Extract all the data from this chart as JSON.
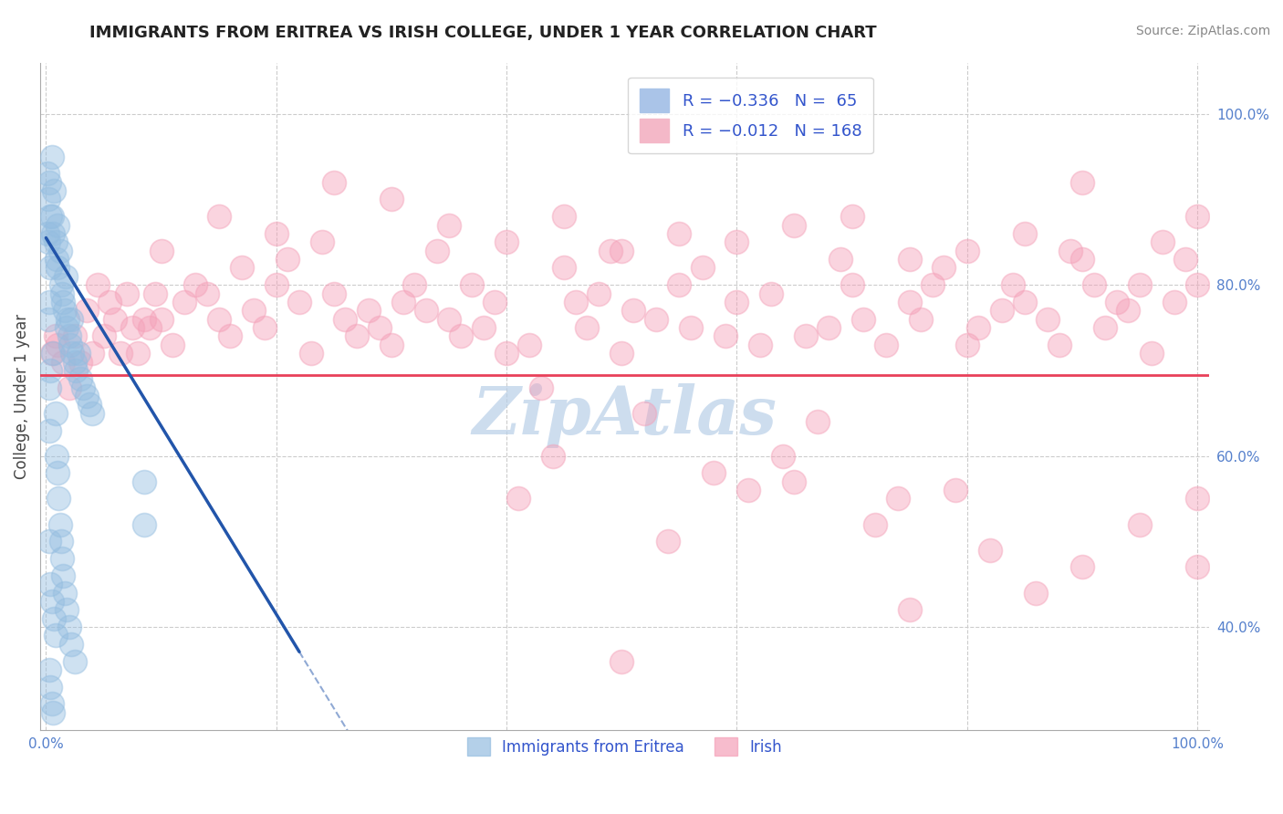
{
  "title": "IMMIGRANTS FROM ERITREA VS IRISH COLLEGE, UNDER 1 YEAR CORRELATION CHART",
  "source": "Source: ZipAtlas.com",
  "ylabel": "College, Under 1 year",
  "xlim": [
    -0.005,
    1.01
  ],
  "ylim": [
    0.28,
    1.06
  ],
  "xtick_positions": [
    0.0,
    1.0
  ],
  "xtick_labels": [
    "0.0%",
    "100.0%"
  ],
  "ytick_positions": [
    0.4,
    0.6,
    0.8,
    1.0
  ],
  "ytick_labels": [
    "40.0%",
    "60.0%",
    "80.0%",
    "100.0%"
  ],
  "grid_yticks": [
    0.4,
    0.6,
    0.8,
    1.0
  ],
  "grid_xticks": [
    0.0,
    0.2,
    0.4,
    0.6,
    0.8,
    1.0
  ],
  "blue_scatter_color": "#94bde0",
  "pink_scatter_color": "#f4a0b8",
  "blue_line_color": "#2255aa",
  "pink_line_color": "#e8405a",
  "grid_color": "#cccccc",
  "background_color": "#ffffff",
  "watermark_text": "ZipAtlas",
  "watermark_color": "#b8cfe8",
  "tick_color": "#5580cc",
  "blue_line_x": [
    0.0,
    0.22
  ],
  "blue_line_y_start": 0.855,
  "blue_line_slope": -2.2,
  "pink_line_y": 0.695,
  "blue_points": [
    [
      0.001,
      0.93
    ],
    [
      0.001,
      0.86
    ],
    [
      0.002,
      0.9
    ],
    [
      0.002,
      0.85
    ],
    [
      0.002,
      0.76
    ],
    [
      0.003,
      0.92
    ],
    [
      0.003,
      0.78
    ],
    [
      0.003,
      0.68
    ],
    [
      0.003,
      0.63
    ],
    [
      0.003,
      0.5
    ],
    [
      0.003,
      0.35
    ],
    [
      0.004,
      0.88
    ],
    [
      0.004,
      0.82
    ],
    [
      0.004,
      0.7
    ],
    [
      0.004,
      0.45
    ],
    [
      0.004,
      0.33
    ],
    [
      0.005,
      0.95
    ],
    [
      0.005,
      0.88
    ],
    [
      0.005,
      0.43
    ],
    [
      0.005,
      0.31
    ],
    [
      0.006,
      0.86
    ],
    [
      0.006,
      0.72
    ],
    [
      0.006,
      0.3
    ],
    [
      0.007,
      0.91
    ],
    [
      0.007,
      0.41
    ],
    [
      0.008,
      0.85
    ],
    [
      0.008,
      0.65
    ],
    [
      0.008,
      0.39
    ],
    [
      0.009,
      0.83
    ],
    [
      0.009,
      0.6
    ],
    [
      0.01,
      0.82
    ],
    [
      0.01,
      0.87
    ],
    [
      0.01,
      0.58
    ],
    [
      0.011,
      0.55
    ],
    [
      0.012,
      0.84
    ],
    [
      0.012,
      0.52
    ],
    [
      0.013,
      0.8
    ],
    [
      0.013,
      0.5
    ],
    [
      0.014,
      0.79
    ],
    [
      0.014,
      0.48
    ],
    [
      0.015,
      0.78
    ],
    [
      0.015,
      0.46
    ],
    [
      0.016,
      0.77
    ],
    [
      0.016,
      0.44
    ],
    [
      0.017,
      0.81
    ],
    [
      0.018,
      0.75
    ],
    [
      0.018,
      0.42
    ],
    [
      0.019,
      0.76
    ],
    [
      0.02,
      0.74
    ],
    [
      0.02,
      0.4
    ],
    [
      0.021,
      0.73
    ],
    [
      0.022,
      0.76
    ],
    [
      0.022,
      0.38
    ],
    [
      0.023,
      0.72
    ],
    [
      0.025,
      0.71
    ],
    [
      0.025,
      0.36
    ],
    [
      0.026,
      0.7
    ],
    [
      0.028,
      0.72
    ],
    [
      0.03,
      0.69
    ],
    [
      0.032,
      0.68
    ],
    [
      0.035,
      0.67
    ],
    [
      0.038,
      0.66
    ],
    [
      0.04,
      0.65
    ],
    [
      0.085,
      0.57
    ],
    [
      0.085,
      0.52
    ]
  ],
  "pink_points": [
    [
      0.005,
      0.72
    ],
    [
      0.008,
      0.74
    ],
    [
      0.01,
      0.73
    ],
    [
      0.015,
      0.71
    ],
    [
      0.02,
      0.68
    ],
    [
      0.025,
      0.74
    ],
    [
      0.03,
      0.71
    ],
    [
      0.035,
      0.77
    ],
    [
      0.04,
      0.72
    ],
    [
      0.045,
      0.8
    ],
    [
      0.05,
      0.74
    ],
    [
      0.055,
      0.78
    ],
    [
      0.06,
      0.76
    ],
    [
      0.065,
      0.72
    ],
    [
      0.07,
      0.79
    ],
    [
      0.075,
      0.75
    ],
    [
      0.08,
      0.72
    ],
    [
      0.085,
      0.76
    ],
    [
      0.09,
      0.75
    ],
    [
      0.095,
      0.79
    ],
    [
      0.1,
      0.76
    ],
    [
      0.1,
      0.84
    ],
    [
      0.11,
      0.73
    ],
    [
      0.12,
      0.78
    ],
    [
      0.13,
      0.8
    ],
    [
      0.14,
      0.79
    ],
    [
      0.15,
      0.76
    ],
    [
      0.15,
      0.88
    ],
    [
      0.16,
      0.74
    ],
    [
      0.17,
      0.82
    ],
    [
      0.18,
      0.77
    ],
    [
      0.19,
      0.75
    ],
    [
      0.2,
      0.8
    ],
    [
      0.2,
      0.86
    ],
    [
      0.21,
      0.83
    ],
    [
      0.22,
      0.78
    ],
    [
      0.23,
      0.72
    ],
    [
      0.24,
      0.85
    ],
    [
      0.25,
      0.79
    ],
    [
      0.25,
      0.92
    ],
    [
      0.26,
      0.76
    ],
    [
      0.27,
      0.74
    ],
    [
      0.28,
      0.77
    ],
    [
      0.29,
      0.75
    ],
    [
      0.3,
      0.73
    ],
    [
      0.3,
      0.9
    ],
    [
      0.31,
      0.78
    ],
    [
      0.32,
      0.8
    ],
    [
      0.33,
      0.77
    ],
    [
      0.34,
      0.84
    ],
    [
      0.35,
      0.76
    ],
    [
      0.35,
      0.87
    ],
    [
      0.36,
      0.74
    ],
    [
      0.37,
      0.8
    ],
    [
      0.38,
      0.75
    ],
    [
      0.39,
      0.78
    ],
    [
      0.4,
      0.72
    ],
    [
      0.4,
      0.85
    ],
    [
      0.41,
      0.55
    ],
    [
      0.42,
      0.73
    ],
    [
      0.43,
      0.68
    ],
    [
      0.44,
      0.6
    ],
    [
      0.45,
      0.82
    ],
    [
      0.45,
      0.88
    ],
    [
      0.46,
      0.78
    ],
    [
      0.47,
      0.75
    ],
    [
      0.48,
      0.79
    ],
    [
      0.49,
      0.84
    ],
    [
      0.5,
      0.72
    ],
    [
      0.5,
      0.84
    ],
    [
      0.5,
      0.36
    ],
    [
      0.51,
      0.77
    ],
    [
      0.52,
      0.65
    ],
    [
      0.53,
      0.76
    ],
    [
      0.54,
      0.5
    ],
    [
      0.55,
      0.8
    ],
    [
      0.55,
      0.86
    ],
    [
      0.56,
      0.75
    ],
    [
      0.57,
      0.82
    ],
    [
      0.58,
      0.58
    ],
    [
      0.59,
      0.74
    ],
    [
      0.6,
      0.78
    ],
    [
      0.6,
      0.85
    ],
    [
      0.61,
      0.56
    ],
    [
      0.62,
      0.73
    ],
    [
      0.63,
      0.79
    ],
    [
      0.64,
      0.6
    ],
    [
      0.65,
      0.57
    ],
    [
      0.65,
      0.87
    ],
    [
      0.66,
      0.74
    ],
    [
      0.67,
      0.64
    ],
    [
      0.68,
      0.75
    ],
    [
      0.69,
      0.83
    ],
    [
      0.7,
      0.8
    ],
    [
      0.7,
      0.88
    ],
    [
      0.71,
      0.76
    ],
    [
      0.72,
      0.52
    ],
    [
      0.73,
      0.73
    ],
    [
      0.74,
      0.55
    ],
    [
      0.75,
      0.78
    ],
    [
      0.75,
      0.83
    ],
    [
      0.75,
      0.42
    ],
    [
      0.76,
      0.76
    ],
    [
      0.77,
      0.8
    ],
    [
      0.78,
      0.82
    ],
    [
      0.79,
      0.56
    ],
    [
      0.8,
      0.73
    ],
    [
      0.8,
      0.84
    ],
    [
      0.81,
      0.75
    ],
    [
      0.82,
      0.49
    ],
    [
      0.83,
      0.77
    ],
    [
      0.84,
      0.8
    ],
    [
      0.85,
      0.78
    ],
    [
      0.85,
      0.86
    ],
    [
      0.86,
      0.44
    ],
    [
      0.87,
      0.76
    ],
    [
      0.88,
      0.73
    ],
    [
      0.89,
      0.84
    ],
    [
      0.9,
      0.47
    ],
    [
      0.9,
      0.83
    ],
    [
      0.9,
      0.92
    ],
    [
      0.91,
      0.8
    ],
    [
      0.92,
      0.75
    ],
    [
      0.93,
      0.78
    ],
    [
      0.94,
      0.77
    ],
    [
      0.95,
      0.52
    ],
    [
      0.95,
      0.8
    ],
    [
      0.96,
      0.72
    ],
    [
      0.97,
      0.85
    ],
    [
      0.98,
      0.78
    ],
    [
      0.99,
      0.83
    ],
    [
      1.0,
      0.8
    ],
    [
      1.0,
      0.55
    ],
    [
      1.0,
      0.47
    ],
    [
      1.0,
      0.88
    ]
  ]
}
